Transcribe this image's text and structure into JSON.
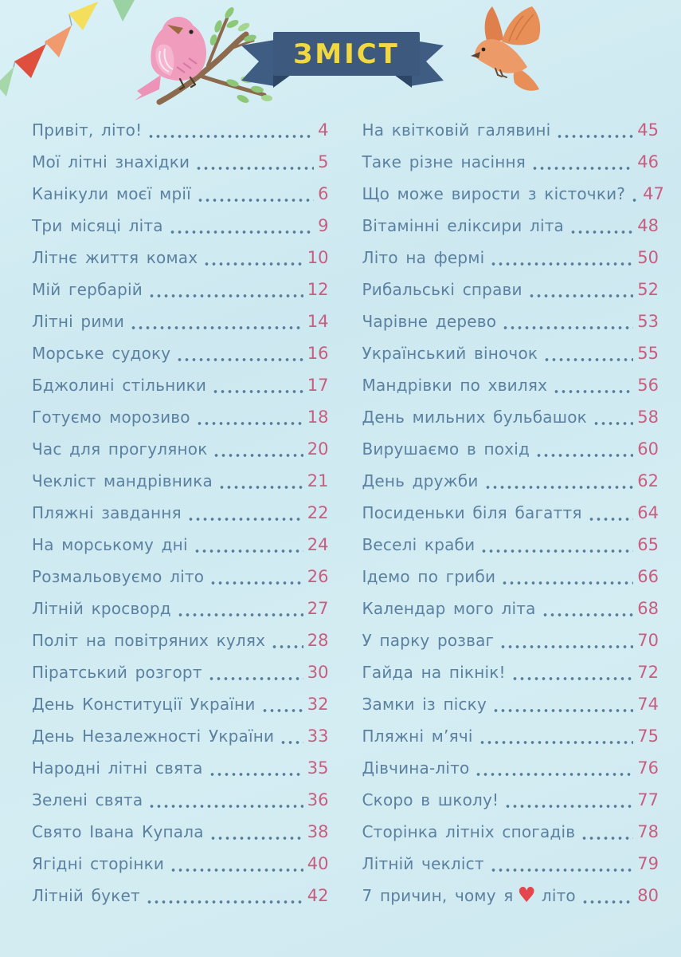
{
  "banner": {
    "label": "ЗМІСТ",
    "ribbon_color": "#3d5a7e",
    "label_color": "#f2d840"
  },
  "page_style": {
    "background_color": "#cfe9f0",
    "entry_text_color": "#5b80a0",
    "page_number_color": "#c75e80",
    "dot_leader_color": "#567d9c"
  },
  "icons": {
    "heart_glyph": "♥",
    "heart_color": "#e4464e",
    "bunting_flag_colors": [
      "#9bd2a3",
      "#f4df5c",
      "#f09a6e",
      "#df4f3e",
      "#a6d7ab"
    ],
    "pink_bird": "pink-bird-on-branch-icon",
    "orange_bird": "orange-flying-bird-icon"
  },
  "toc": {
    "left": [
      {
        "title": "Привіт, літо!",
        "page": "4"
      },
      {
        "title": "Мої літні знахідки",
        "page": "5"
      },
      {
        "title": "Канікули моєї мрії",
        "page": "6"
      },
      {
        "title": "Три місяці літа",
        "page": "9"
      },
      {
        "title": "Літнє життя комах",
        "page": "10"
      },
      {
        "title": "Мій гербарій",
        "page": "12"
      },
      {
        "title": "Літні рими",
        "page": "14"
      },
      {
        "title": "Морське судоку",
        "page": "16"
      },
      {
        "title": "Бджолині стільники",
        "page": "17"
      },
      {
        "title": "Готуємо морозиво",
        "page": "18"
      },
      {
        "title": "Час для прогулянок",
        "page": "20"
      },
      {
        "title": "Чекліст мандрівника",
        "page": "21"
      },
      {
        "title": "Пляжні завдання",
        "page": "22"
      },
      {
        "title": "На морському дні",
        "page": "24"
      },
      {
        "title": "Розмальовуємо літо",
        "page": "26"
      },
      {
        "title": "Літній кросворд",
        "page": "27"
      },
      {
        "title": "Політ на повітряних кулях",
        "page": "28"
      },
      {
        "title": "Піратський розгорт",
        "page": "30"
      },
      {
        "title": "День Конституції України",
        "page": "32"
      },
      {
        "title": "День Незалежності України",
        "page": "33"
      },
      {
        "title": "Народні літні свята",
        "page": "35"
      },
      {
        "title": "Зелені свята",
        "page": "36"
      },
      {
        "title": "Свято Івана Купала",
        "page": "38"
      },
      {
        "title": "Ягідні сторінки",
        "page": "40"
      },
      {
        "title": "Літній букет",
        "page": "42"
      }
    ],
    "right": [
      {
        "title": "На квітковій галявині",
        "page": "45"
      },
      {
        "title": "Таке різне насіння",
        "page": "46"
      },
      {
        "title": "Що може вирости з кісточки?",
        "page": "47"
      },
      {
        "title": "Вітамінні еліксири літа",
        "page": "48"
      },
      {
        "title": "Літо на фермі",
        "page": "50"
      },
      {
        "title": "Рибальські справи",
        "page": "52"
      },
      {
        "title": "Чарівне дерево",
        "page": "53"
      },
      {
        "title": "Український віночок",
        "page": "55"
      },
      {
        "title": "Мандрівки по хвилях",
        "page": "56"
      },
      {
        "title": "День мильних бульбашок",
        "page": "58"
      },
      {
        "title": "Вирушаємо в похід",
        "page": "60"
      },
      {
        "title": "День дружби",
        "page": "62"
      },
      {
        "title": "Посиденьки біля багаття",
        "page": "64"
      },
      {
        "title": "Веселі краби",
        "page": "65"
      },
      {
        "title": "Ідемо по гриби",
        "page": "66"
      },
      {
        "title": "Календар мого літа",
        "page": "68"
      },
      {
        "title": "У парку розваг",
        "page": "70"
      },
      {
        "title": "Гайда на пікнік!",
        "page": "72"
      },
      {
        "title": "Замки із піску",
        "page": "74"
      },
      {
        "title": "Пляжні м’ячі",
        "page": "75"
      },
      {
        "title": "Дівчина-літо",
        "page": "76"
      },
      {
        "title": "Скоро в школу!",
        "page": "77"
      },
      {
        "title": "Сторінка літніх спогадів",
        "page": "78"
      },
      {
        "title": "Літній чекліст",
        "page": "79"
      },
      {
        "title": "7 причин, чому я",
        "heart": true,
        "suffix": "літо",
        "page": "80"
      }
    ]
  }
}
